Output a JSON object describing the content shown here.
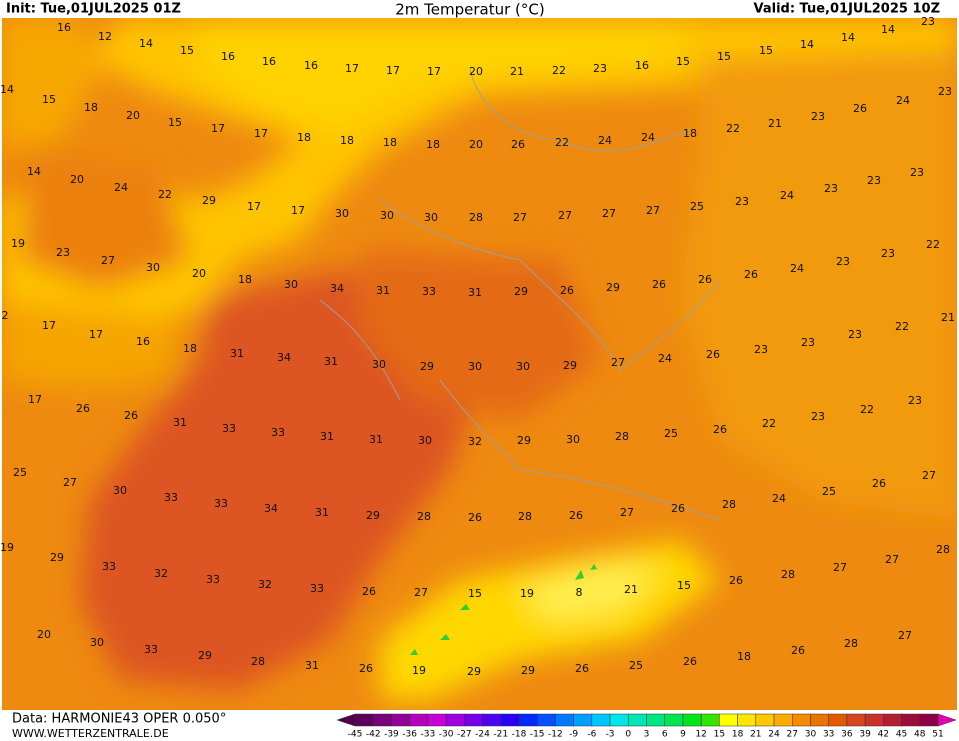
{
  "header": {
    "init": "Init: Tue,01JUL2025 01Z",
    "title": "2m Temperatur (°C)",
    "valid": "Valid: Tue,01JUL2025 10Z"
  },
  "labels": [
    16,
    12,
    14,
    15,
    16,
    16,
    16,
    17,
    17,
    17,
    20,
    21,
    22,
    23,
    16,
    15,
    15,
    15,
    14,
    14,
    14,
    23,
    14,
    15,
    18,
    20,
    15,
    17,
    17,
    18,
    18,
    18,
    18,
    20,
    26,
    22,
    24,
    24,
    18,
    22,
    21,
    23,
    26,
    24,
    23,
    14,
    20,
    24,
    22,
    29,
    17,
    17,
    30,
    30,
    30,
    28,
    27,
    27,
    27,
    27,
    25,
    23,
    24,
    23,
    23,
    23,
    19,
    23,
    27,
    30,
    20,
    18,
    30,
    34,
    31,
    33,
    31,
    29,
    26,
    29,
    26,
    26,
    26,
    24,
    23,
    23,
    22,
    2,
    17,
    17,
    16,
    18,
    31,
    34,
    31,
    30,
    29,
    30,
    30,
    29,
    27,
    24,
    26,
    23,
    23,
    23,
    22,
    21,
    17,
    26,
    26,
    31,
    33,
    33,
    31,
    31,
    30,
    32,
    29,
    30,
    28,
    25,
    26,
    22,
    23,
    22,
    23,
    25,
    27,
    30,
    33,
    33,
    34,
    31,
    29,
    28,
    26,
    28,
    26,
    27,
    26,
    28,
    24,
    25,
    26,
    27,
    19,
    29,
    33,
    32,
    33,
    32,
    33,
    26,
    27,
    15,
    19,
    8,
    21,
    15,
    26,
    28,
    27,
    27,
    28,
    20,
    30,
    33,
    29,
    28,
    31,
    26,
    19,
    29,
    29,
    26,
    25,
    26,
    18,
    26,
    28,
    27
  ],
  "colorbar": {
    "ticks": [
      -45,
      -42,
      -39,
      -36,
      -33,
      -30,
      -27,
      -24,
      -21,
      -18,
      -15,
      -12,
      -9,
      -6,
      -3,
      0,
      3,
      6,
      9,
      12,
      15,
      18,
      21,
      24,
      27,
      30,
      33,
      36,
      39,
      42,
      45,
      48,
      51
    ],
    "colors": [
      "#5a005a",
      "#78007a",
      "#96009a",
      "#b400ba",
      "#c800d8",
      "#a000e0",
      "#7800e8",
      "#5000f0",
      "#2800f8",
      "#0028ff",
      "#0050ff",
      "#0078ff",
      "#00a0ff",
      "#00c8ff",
      "#00e6e6",
      "#00e6b4",
      "#00e682",
      "#00e650",
      "#00e61e",
      "#32e600",
      "#ffff00",
      "#ffe600",
      "#ffc800",
      "#ffaa00",
      "#f58c00",
      "#eb7300",
      "#e15a00",
      "#d7461e",
      "#c83228",
      "#b41e32",
      "#a00a3c",
      "#8c0046"
    ],
    "end_colors": [
      "#50004b",
      "#e600b4"
    ]
  },
  "footer": {
    "data": "Data: HARMONIE43 OPER 0.050°",
    "site": "WWW.WETTERZENTRALE.DE"
  }
}
